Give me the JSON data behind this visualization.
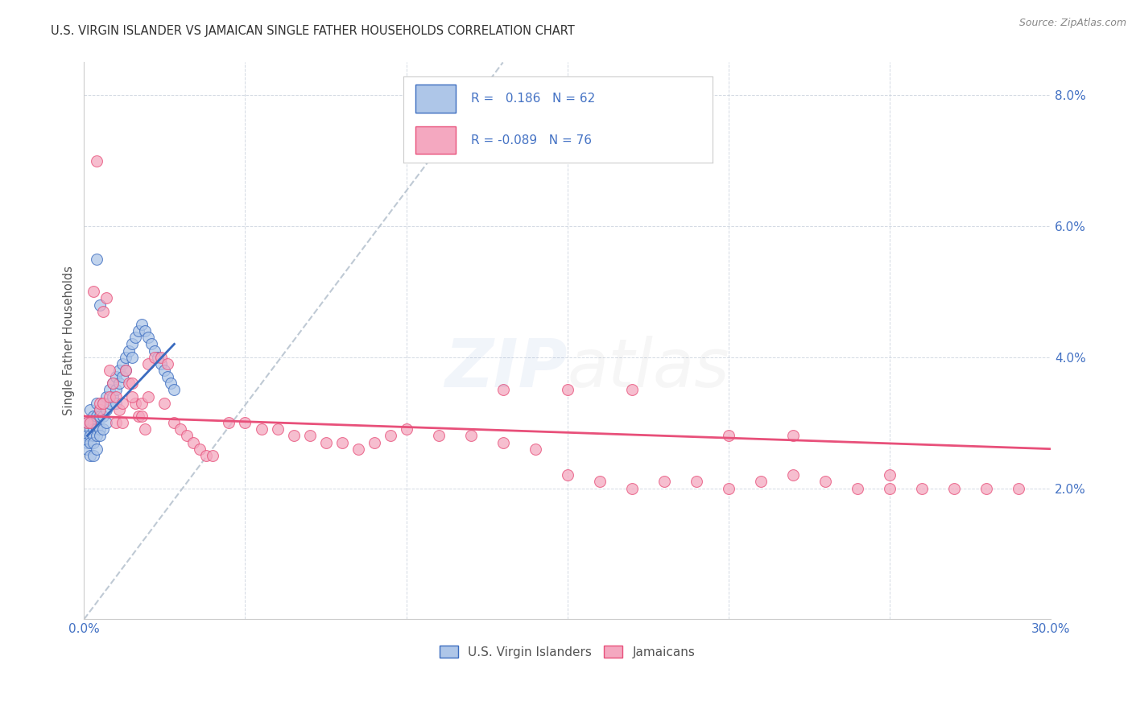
{
  "title": "U.S. VIRGIN ISLANDER VS JAMAICAN SINGLE FATHER HOUSEHOLDS CORRELATION CHART",
  "source": "Source: ZipAtlas.com",
  "ylabel": "Single Father Households",
  "xlim": [
    0.0,
    0.3
  ],
  "ylim": [
    0.0,
    0.085
  ],
  "blue_R": 0.186,
  "blue_N": 62,
  "pink_R": -0.089,
  "pink_N": 76,
  "blue_color": "#aec6e8",
  "pink_color": "#f4a8c0",
  "blue_line_color": "#3a6bbf",
  "pink_line_color": "#e8507a",
  "dashed_line_color": "#b8c4d0",
  "background_color": "#ffffff",
  "legend_label_blue": "U.S. Virgin Islanders",
  "legend_label_pink": "Jamaicans",
  "blue_x": [
    0.001,
    0.001,
    0.001,
    0.001,
    0.002,
    0.002,
    0.002,
    0.002,
    0.002,
    0.002,
    0.003,
    0.003,
    0.003,
    0.003,
    0.003,
    0.003,
    0.004,
    0.004,
    0.004,
    0.004,
    0.004,
    0.005,
    0.005,
    0.005,
    0.005,
    0.006,
    0.006,
    0.006,
    0.007,
    0.007,
    0.007,
    0.008,
    0.008,
    0.009,
    0.009,
    0.01,
    0.01,
    0.01,
    0.011,
    0.011,
    0.012,
    0.012,
    0.013,
    0.013,
    0.014,
    0.015,
    0.015,
    0.016,
    0.017,
    0.018,
    0.019,
    0.02,
    0.021,
    0.022,
    0.023,
    0.024,
    0.025,
    0.026,
    0.027,
    0.028,
    0.004,
    0.005
  ],
  "blue_y": [
    0.03,
    0.028,
    0.027,
    0.026,
    0.032,
    0.03,
    0.029,
    0.028,
    0.027,
    0.025,
    0.031,
    0.03,
    0.029,
    0.028,
    0.027,
    0.025,
    0.033,
    0.031,
    0.029,
    0.028,
    0.026,
    0.032,
    0.031,
    0.029,
    0.028,
    0.033,
    0.031,
    0.029,
    0.034,
    0.032,
    0.03,
    0.035,
    0.033,
    0.036,
    0.034,
    0.037,
    0.035,
    0.033,
    0.038,
    0.036,
    0.039,
    0.037,
    0.04,
    0.038,
    0.041,
    0.042,
    0.04,
    0.043,
    0.044,
    0.045,
    0.044,
    0.043,
    0.042,
    0.041,
    0.04,
    0.039,
    0.038,
    0.037,
    0.036,
    0.035,
    0.055,
    0.048
  ],
  "pink_x": [
    0.001,
    0.002,
    0.003,
    0.004,
    0.005,
    0.006,
    0.007,
    0.008,
    0.009,
    0.01,
    0.011,
    0.012,
    0.013,
    0.014,
    0.015,
    0.016,
    0.017,
    0.018,
    0.019,
    0.02,
    0.022,
    0.024,
    0.026,
    0.028,
    0.03,
    0.032,
    0.034,
    0.036,
    0.038,
    0.04,
    0.045,
    0.05,
    0.055,
    0.06,
    0.065,
    0.07,
    0.075,
    0.08,
    0.085,
    0.09,
    0.095,
    0.1,
    0.11,
    0.12,
    0.13,
    0.14,
    0.15,
    0.16,
    0.17,
    0.18,
    0.19,
    0.2,
    0.21,
    0.22,
    0.23,
    0.24,
    0.25,
    0.26,
    0.27,
    0.28,
    0.29,
    0.005,
    0.006,
    0.008,
    0.01,
    0.012,
    0.015,
    0.018,
    0.02,
    0.025,
    0.13,
    0.15,
    0.17,
    0.2,
    0.22,
    0.25
  ],
  "pink_y": [
    0.03,
    0.03,
    0.05,
    0.07,
    0.032,
    0.047,
    0.049,
    0.038,
    0.036,
    0.03,
    0.032,
    0.03,
    0.038,
    0.036,
    0.036,
    0.033,
    0.031,
    0.031,
    0.029,
    0.039,
    0.04,
    0.04,
    0.039,
    0.03,
    0.029,
    0.028,
    0.027,
    0.026,
    0.025,
    0.025,
    0.03,
    0.03,
    0.029,
    0.029,
    0.028,
    0.028,
    0.027,
    0.027,
    0.026,
    0.027,
    0.028,
    0.029,
    0.028,
    0.028,
    0.027,
    0.026,
    0.022,
    0.021,
    0.02,
    0.021,
    0.021,
    0.02,
    0.021,
    0.022,
    0.021,
    0.02,
    0.02,
    0.02,
    0.02,
    0.02,
    0.02,
    0.033,
    0.033,
    0.034,
    0.034,
    0.033,
    0.034,
    0.033,
    0.034,
    0.033,
    0.035,
    0.035,
    0.035,
    0.028,
    0.028,
    0.022
  ],
  "blue_line_x": [
    0.001,
    0.028
  ],
  "blue_line_y": [
    0.028,
    0.042
  ],
  "pink_line_x": [
    0.0,
    0.3
  ],
  "pink_line_y": [
    0.031,
    0.026
  ],
  "dash_line_x": [
    0.0,
    0.13
  ],
  "dash_line_y": [
    0.0,
    0.085
  ]
}
